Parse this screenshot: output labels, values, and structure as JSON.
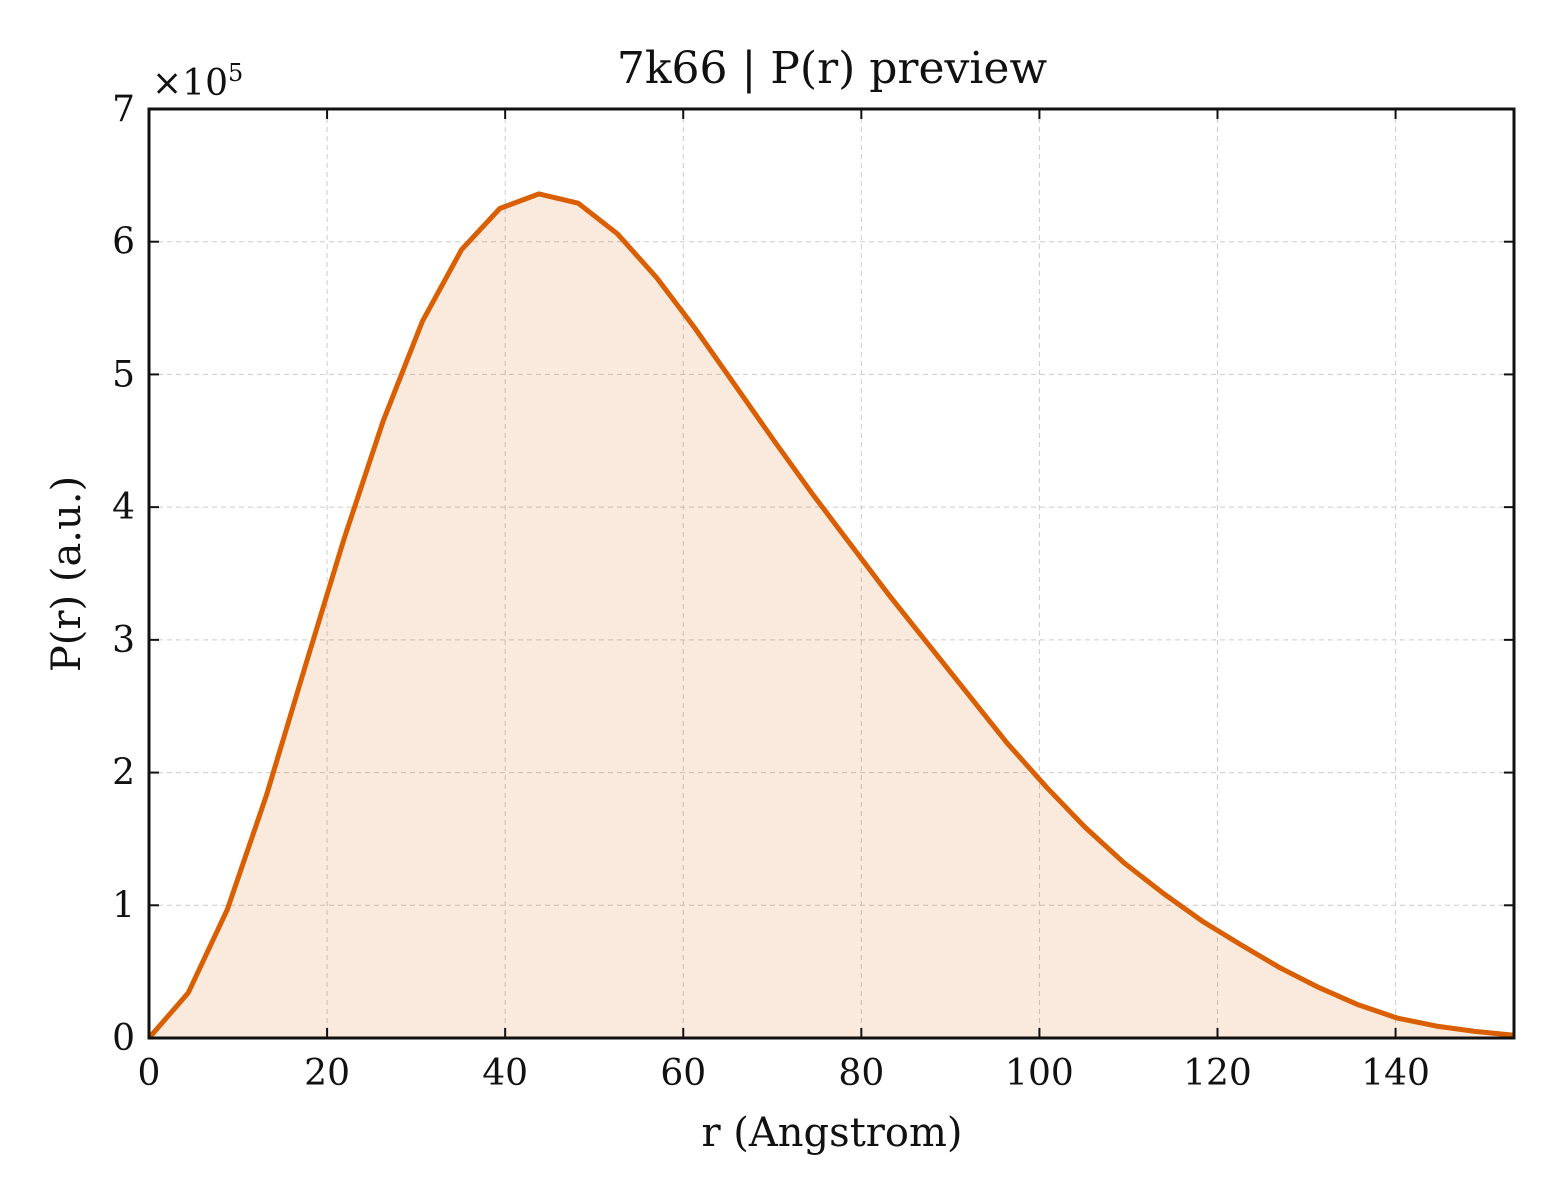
{
  "chart_data": {
    "type": "area",
    "title": "7k66 | P(r) preview",
    "xlabel": "r (Angstrom)",
    "ylabel": "P(r) (a.u.)",
    "y_multiplier_prefix": "×10",
    "y_multiplier_exponent": "5",
    "xlim": [
      0,
      153.3
    ],
    "ylim": [
      0,
      7
    ],
    "y_scale": 100000,
    "x_ticks": [
      0,
      20,
      40,
      60,
      80,
      100,
      120,
      140
    ],
    "y_ticks": [
      0,
      1,
      2,
      3,
      4,
      5,
      6,
      7
    ],
    "grid": true,
    "legend": "none",
    "series": [
      {
        "color": "#d95f02",
        "x": [
          0,
          4.4,
          8.8,
          13.2,
          17.5,
          21.9,
          26.3,
          30.7,
          35.1,
          39.4,
          43.8,
          48.2,
          52.6,
          57.0,
          61.3,
          65.7,
          70.1,
          74.5,
          78.9,
          83.2,
          87.6,
          92.0,
          96.4,
          100.8,
          105.1,
          109.5,
          113.9,
          118.3,
          122.7,
          127.0,
          131.4,
          135.8,
          140.2,
          144.6,
          148.9,
          153.3
        ],
        "values": [
          0,
          0.34,
          0.97,
          1.83,
          2.79,
          3.76,
          4.65,
          5.4,
          5.94,
          6.25,
          6.36,
          6.29,
          6.06,
          5.73,
          5.35,
          4.93,
          4.51,
          4.1,
          3.71,
          3.33,
          2.96,
          2.59,
          2.22,
          1.89,
          1.59,
          1.32,
          1.09,
          0.88,
          0.7,
          0.53,
          0.38,
          0.25,
          0.15,
          0.09,
          0.05,
          0.02
        ]
      }
    ]
  }
}
